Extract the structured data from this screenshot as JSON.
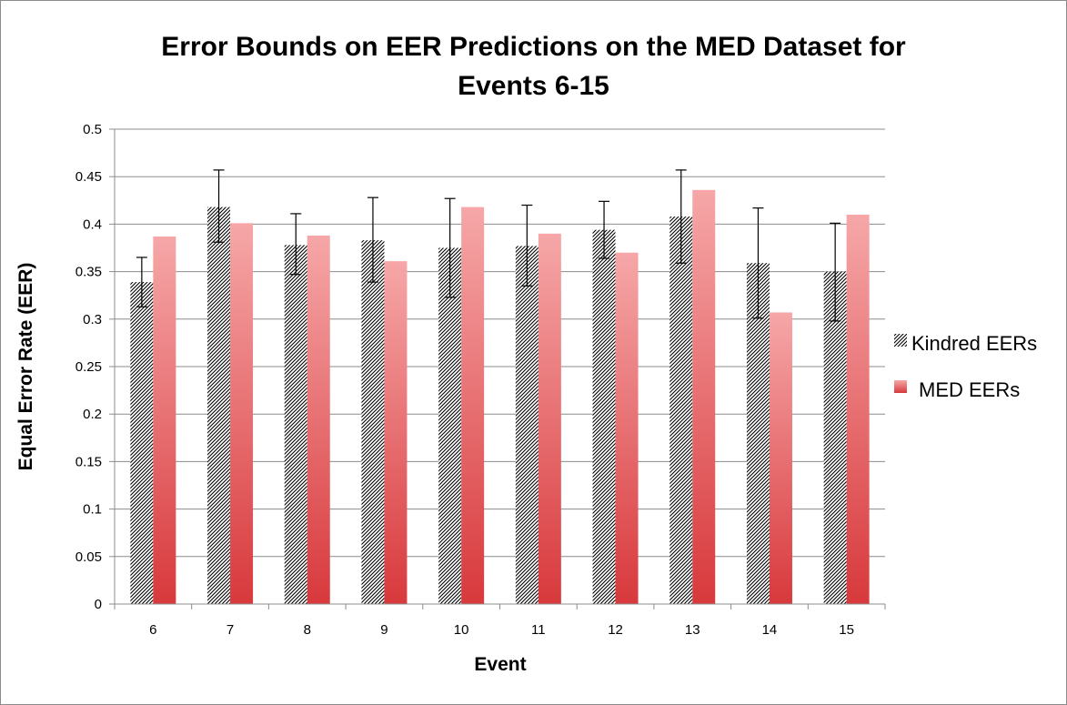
{
  "chart_data": {
    "type": "bar",
    "title_lines": [
      "Error Bounds on EER Predictions on the MED Dataset for",
      "Events 6-15"
    ],
    "xlabel": "Event",
    "ylabel": "Equal Error Rate (EER)",
    "ylim": [
      0,
      0.5
    ],
    "yticks": [
      "0",
      "0.05",
      "0.1",
      "0.15",
      "0.2",
      "0.25",
      "0.3",
      "0.35",
      "0.4",
      "0.45",
      "0.5"
    ],
    "categories": [
      "6",
      "7",
      "8",
      "9",
      "10",
      "11",
      "12",
      "13",
      "14",
      "15"
    ],
    "grid": true,
    "legend_position": "right",
    "series": [
      {
        "name": "Kindred EERs",
        "pattern": "hatched",
        "values": [
          0.339,
          0.418,
          0.378,
          0.383,
          0.375,
          0.377,
          0.394,
          0.408,
          0.359,
          0.35
        ],
        "error_low": [
          0.313,
          0.381,
          0.347,
          0.339,
          0.323,
          0.335,
          0.364,
          0.359,
          0.301,
          0.298
        ],
        "error_high": [
          0.365,
          0.457,
          0.411,
          0.428,
          0.427,
          0.42,
          0.424,
          0.457,
          0.417,
          0.401
        ]
      },
      {
        "name": "MED EERs",
        "color": "#e8696b",
        "values": [
          0.387,
          0.401,
          0.388,
          0.361,
          0.418,
          0.39,
          0.37,
          0.436,
          0.307,
          0.41
        ]
      }
    ]
  }
}
